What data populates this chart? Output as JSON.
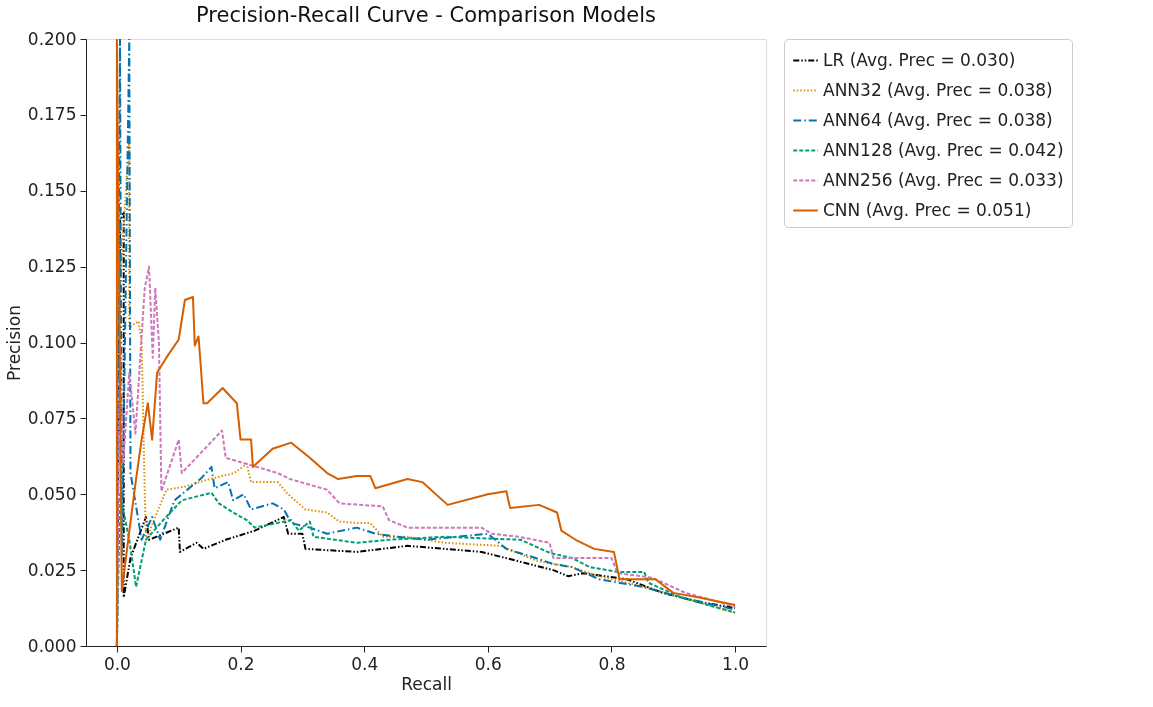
{
  "chart_data": {
    "type": "line",
    "title": "Precision-Recall Curve - Comparison Models",
    "xlabel": "Recall",
    "ylabel": "Precision",
    "xlim": [
      -0.05,
      1.05
    ],
    "ylim": [
      0,
      0.2
    ],
    "xticks": [
      {
        "value": 0,
        "label": "0.0"
      },
      {
        "value": 0.2,
        "label": "0.2"
      },
      {
        "value": 0.4,
        "label": "0.4"
      },
      {
        "value": 0.6,
        "label": "0.6"
      },
      {
        "value": 0.8,
        "label": "0.8"
      },
      {
        "value": 1,
        "label": "1.0"
      }
    ],
    "yticks": [
      {
        "value": 0,
        "label": "0.000"
      },
      {
        "value": 0.025,
        "label": "0.025"
      },
      {
        "value": 0.05,
        "label": "0.050"
      },
      {
        "value": 0.075,
        "label": "0.075"
      },
      {
        "value": 0.1,
        "label": "0.100"
      },
      {
        "value": 0.125,
        "label": "0.125"
      },
      {
        "value": 0.15,
        "label": "0.150"
      },
      {
        "value": 0.175,
        "label": "0.175"
      },
      {
        "value": 0.2,
        "label": "0.200"
      }
    ],
    "grid": false,
    "legend": "right",
    "marker": "none",
    "series": [
      {
        "name": "LR (Avg. Prec = 0.030)",
        "color": "#000000",
        "line_style": "dashdotdot",
        "x": [
          0,
          0.005,
          0.011,
          0.011,
          0.022,
          0.047,
          0.052,
          0.1,
          0.102,
          0.129,
          0.14,
          0.176,
          0.223,
          0.27,
          0.277,
          0.3,
          0.305,
          0.388,
          0.47,
          0.59,
          0.648,
          0.706,
          0.73,
          0.754,
          0.825,
          0.883,
          0.942,
          1.0
        ],
        "values": [
          0,
          0.14,
          0.143,
          0.016,
          0.029,
          0.0425,
          0.035,
          0.039,
          0.031,
          0.034,
          0.032,
          0.035,
          0.038,
          0.0425,
          0.037,
          0.037,
          0.032,
          0.031,
          0.033,
          0.031,
          0.028,
          0.025,
          0.023,
          0.024,
          0.022,
          0.0175,
          0.0145,
          0.0125
        ]
      },
      {
        "name": "ANN32 (Avg. Prec = 0.038)",
        "color": "#de8f05",
        "line_style": "dotted",
        "x": [
          0,
          0.005,
          0.02,
          0.02,
          0.035,
          0.04,
          0.044,
          0.047,
          0.08,
          0.11,
          0.15,
          0.19,
          0.21,
          0.217,
          0.26,
          0.277,
          0.305,
          0.34,
          0.36,
          0.39,
          0.41,
          0.43,
          0.47,
          0.53,
          0.62,
          0.68,
          0.736,
          0.78,
          0.853,
          0.913,
          1.0
        ],
        "values": [
          0,
          0.12,
          0.167,
          0.105,
          0.107,
          0.1,
          0.06,
          0.035,
          0.0515,
          0.0525,
          0.055,
          0.057,
          0.06,
          0.054,
          0.054,
          0.05,
          0.045,
          0.044,
          0.041,
          0.0405,
          0.0405,
          0.036,
          0.036,
          0.034,
          0.033,
          0.028,
          0.026,
          0.023,
          0.0195,
          0.016,
          0.011
        ]
      },
      {
        "name": "ANN64 (Avg. Prec = 0.038)",
        "color": "#0173b2",
        "line_style": "dashdot",
        "x": [
          0,
          0.005,
          0.008,
          0.02,
          0.022,
          0.04,
          0.057,
          0.07,
          0.093,
          0.105,
          0.135,
          0.153,
          0.158,
          0.18,
          0.188,
          0.205,
          0.217,
          0.252,
          0.27,
          0.282,
          0.312,
          0.34,
          0.388,
          0.418,
          0.453,
          0.5,
          0.6,
          0.63,
          0.677,
          0.706,
          0.736,
          0.78,
          0.85,
          0.913,
          1.0
        ],
        "values": [
          0,
          0.2,
          0.03,
          0.2,
          0.057,
          0.035,
          0.0425,
          0.035,
          0.048,
          0.05,
          0.055,
          0.059,
          0.052,
          0.054,
          0.048,
          0.05,
          0.045,
          0.047,
          0.045,
          0.0405,
          0.039,
          0.037,
          0.039,
          0.037,
          0.036,
          0.035,
          0.037,
          0.032,
          0.029,
          0.027,
          0.026,
          0.022,
          0.0195,
          0.016,
          0.012
        ]
      },
      {
        "name": "ANN128 (Avg. Prec = 0.042)",
        "color": "#029e73",
        "line_style": "dashed",
        "x": [
          0,
          0.005,
          0.02,
          0.031,
          0.047,
          0.075,
          0.105,
          0.153,
          0.165,
          0.188,
          0.21,
          0.223,
          0.282,
          0.294,
          0.312,
          0.318,
          0.388,
          0.44,
          0.53,
          0.653,
          0.7,
          0.736,
          0.765,
          0.81,
          0.853,
          0.86,
          0.913,
          1.0
        ],
        "values": [
          0,
          0.05,
          0.035,
          0.0195,
          0.035,
          0.0415,
          0.048,
          0.0505,
          0.047,
          0.044,
          0.0415,
          0.039,
          0.0415,
          0.038,
          0.041,
          0.036,
          0.034,
          0.035,
          0.036,
          0.035,
          0.0307,
          0.029,
          0.026,
          0.0244,
          0.0244,
          0.0208,
          0.016,
          0.011
        ]
      },
      {
        "name": "ANN256 (Avg. Prec = 0.033)",
        "color": "#cc78bc",
        "line_style": "dashed",
        "x": [
          0,
          0.005,
          0.01,
          0.02,
          0.03,
          0.045,
          0.052,
          0.058,
          0.062,
          0.068,
          0.072,
          0.1,
          0.105,
          0.17,
          0.176,
          0.26,
          0.28,
          0.34,
          0.36,
          0.43,
          0.44,
          0.47,
          0.59,
          0.606,
          0.65,
          0.7,
          0.706,
          0.8,
          0.81,
          0.866,
          0.92,
          1.0
        ],
        "values": [
          0,
          0.1,
          0.06,
          0.09,
          0.07,
          0.118,
          0.125,
          0.095,
          0.118,
          0.1,
          0.051,
          0.068,
          0.057,
          0.071,
          0.062,
          0.057,
          0.055,
          0.0515,
          0.047,
          0.046,
          0.0415,
          0.039,
          0.039,
          0.037,
          0.036,
          0.034,
          0.029,
          0.029,
          0.024,
          0.0225,
          0.0175,
          0.013
        ]
      },
      {
        "name": "CNN (Avg. Prec = 0.051)",
        "color": "#d55e00",
        "line_style": "solid",
        "x": [
          0,
          0,
          0.008,
          0.017,
          0.031,
          0.04,
          0.05,
          0.057,
          0.065,
          0.08,
          0.1,
          0.11,
          0.123,
          0.126,
          0.132,
          0.135,
          0.14,
          0.146,
          0.171,
          0.194,
          0.2,
          0.217,
          0.22,
          0.252,
          0.282,
          0.312,
          0.34,
          0.358,
          0.388,
          0.41,
          0.418,
          0.47,
          0.494,
          0.535,
          0.6,
          0.63,
          0.636,
          0.683,
          0.712,
          0.719,
          0.742,
          0.772,
          0.804,
          0.813,
          0.871,
          0.9,
          0.942,
          1.0
        ],
        "values": [
          0,
          0.2,
          0.018,
          0.033,
          0.055,
          0.068,
          0.08,
          0.068,
          0.09,
          0.095,
          0.101,
          0.114,
          0.115,
          0.099,
          0.102,
          0.094,
          0.08,
          0.08,
          0.085,
          0.08,
          0.068,
          0.068,
          0.059,
          0.065,
          0.067,
          0.062,
          0.057,
          0.055,
          0.056,
          0.056,
          0.052,
          0.055,
          0.054,
          0.0465,
          0.05,
          0.051,
          0.0455,
          0.0465,
          0.044,
          0.038,
          0.035,
          0.032,
          0.031,
          0.022,
          0.022,
          0.0175,
          0.016,
          0.0135
        ]
      }
    ]
  }
}
